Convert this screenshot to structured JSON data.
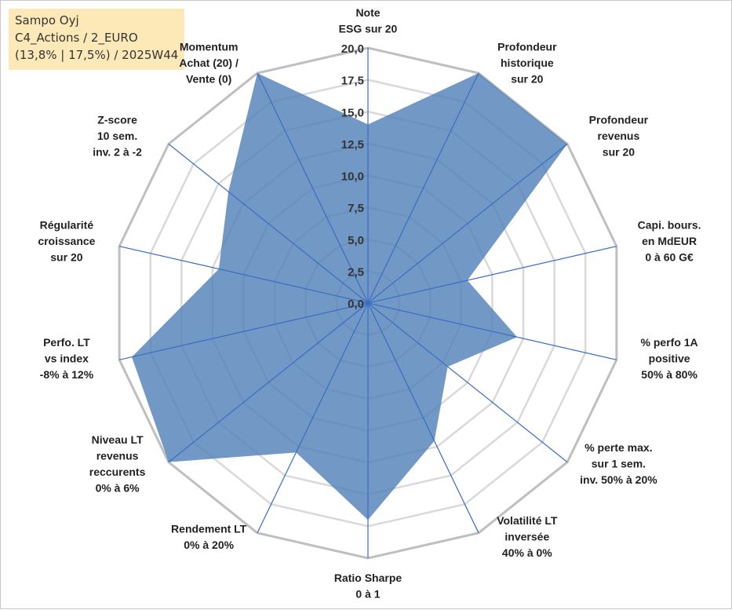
{
  "header": {
    "line1": "Sampo Oyj",
    "line2": "C4_Actions / 2_EURO",
    "line3": "(13,8% | 17,5%) / 2025W44"
  },
  "chart_data": {
    "type": "radar",
    "title": "Sampo Oyj",
    "rmin": 0,
    "rmax": 20,
    "tick_step": 2.5,
    "ticks": [
      "0,0",
      "2,5",
      "5,0",
      "7,5",
      "10,0",
      "12,5",
      "15,0",
      "17,5",
      "20,0"
    ],
    "axes": [
      {
        "label": [
          "Note",
          "ESG sur 20"
        ],
        "value": 14.0
      },
      {
        "label": [
          "Profondeur",
          "historique",
          "sur 20"
        ],
        "value": 20.0
      },
      {
        "label": [
          "Profondeur",
          "revenus",
          "sur 20"
        ],
        "value": 20.0
      },
      {
        "label": [
          "Capi. bours.",
          "en MdEUR",
          "0 à 60 G€"
        ],
        "value": 8.0
      },
      {
        "label": [
          "% perfo 1A",
          "positive",
          "50% à 80%"
        ],
        "value": 12.0
      },
      {
        "label": [
          "% perte max.",
          "sur 1 sem.",
          "inv. 50% à 20%"
        ],
        "value": 8.0
      },
      {
        "label": [
          "Volatilité LT",
          "inversée",
          "40% à 0%"
        ],
        "value": 12.0
      },
      {
        "label": [
          "Ratio Sharpe",
          "0 à 1"
        ],
        "value": 17.0
      },
      {
        "label": [
          "Rendement LT",
          "0% à 20%"
        ],
        "value": 13.0
      },
      {
        "label": [
          "Niveau LT",
          "revenus",
          "reccurents",
          "0% à 6%"
        ],
        "value": 20.0
      },
      {
        "label": [
          "Perfo. LT",
          "vs index",
          "-8% à 12%"
        ],
        "value": 19.0
      },
      {
        "label": [
          "Régularité",
          "croissance",
          "sur 20"
        ],
        "value": 12.0
      },
      {
        "label": [
          "Z-score",
          "10 sem.",
          "inv. 2 à -2"
        ],
        "value": 14.0
      },
      {
        "label": [
          "Momentum",
          "Achat (20) /",
          "Vente (0)"
        ],
        "value": 20.0
      }
    ],
    "colors": {
      "fill": "#4f7fb7",
      "fill_opacity": 0.8,
      "spoke": "#3a6cc4",
      "grid": "#d9d9d9",
      "outer_grid": "#bfbfbf"
    }
  }
}
